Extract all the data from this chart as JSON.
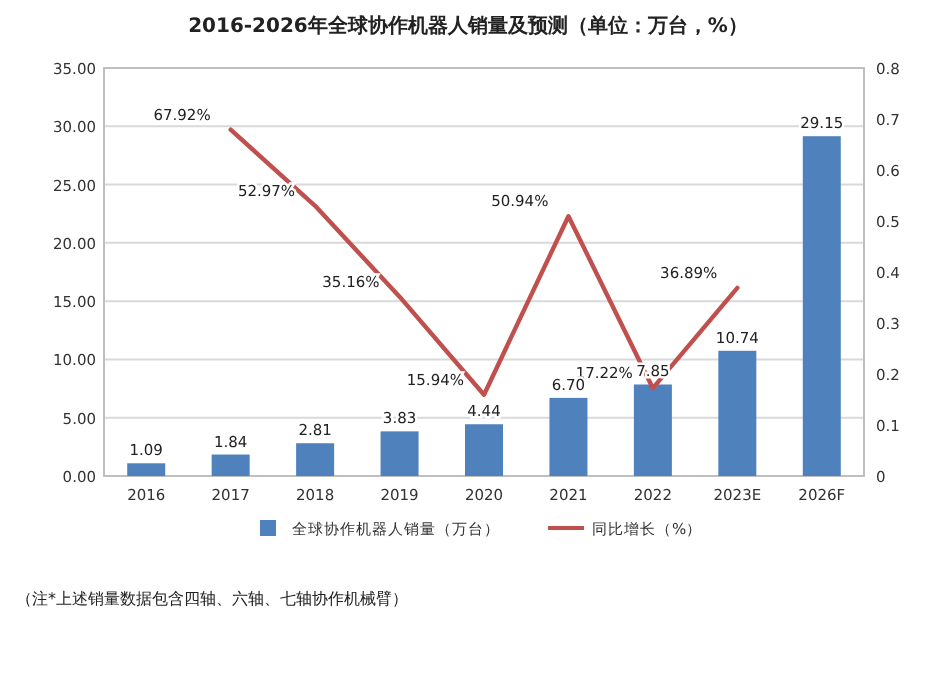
{
  "chart_data": {
    "type": "bar",
    "title": "2016-2026年全球协作机器人销量及预测（单位：万台，%）",
    "categories": [
      "2016",
      "2017",
      "2018",
      "2019",
      "2020",
      "2021",
      "2022",
      "2023E",
      "2026F"
    ],
    "series": [
      {
        "name": "全球协作机器人销量（万台）",
        "color": "#4f81bd",
        "values": [
          1.09,
          1.84,
          2.81,
          3.83,
          4.44,
          6.7,
          7.85,
          10.74,
          29.15
        ],
        "value_labels": [
          "1.09",
          "1.84",
          "2.81",
          "3.83",
          "4.44",
          "6.70",
          "7.85",
          "10.74",
          "29.15"
        ]
      },
      {
        "name": "同比增长（%）",
        "type": "line",
        "axis": "y2",
        "color": "#c0504d",
        "values": [
          null,
          0.6792,
          0.5297,
          0.3516,
          0.1594,
          0.5094,
          0.1722,
          0.3689,
          null
        ],
        "value_labels": [
          null,
          "67.92%",
          "52.97%",
          "35.16%",
          "15.94%",
          "50.94%",
          "17.22%",
          "36.89%",
          null
        ]
      }
    ],
    "ylim": [
      0,
      35
    ],
    "yticks": [
      {
        "value": 0,
        "label": "0.00"
      },
      {
        "value": 5,
        "label": "5.00"
      },
      {
        "value": 10,
        "label": "10.00"
      },
      {
        "value": 15,
        "label": "15.00"
      },
      {
        "value": 20,
        "label": "20.00"
      },
      {
        "value": 25,
        "label": "25.00"
      },
      {
        "value": 30,
        "label": "30.00"
      },
      {
        "value": 35,
        "label": "35.00"
      }
    ],
    "y2lim": [
      0,
      0.8
    ],
    "y2ticks": [
      0,
      0.1,
      0.2,
      0.3,
      0.4,
      0.5,
      0.6,
      0.7,
      0.8
    ],
    "grid": "y",
    "legend": "bottom",
    "annotations": [
      "（注*上述销量数据包含四轴、六轴、七轴协作机械臂）"
    ]
  }
}
